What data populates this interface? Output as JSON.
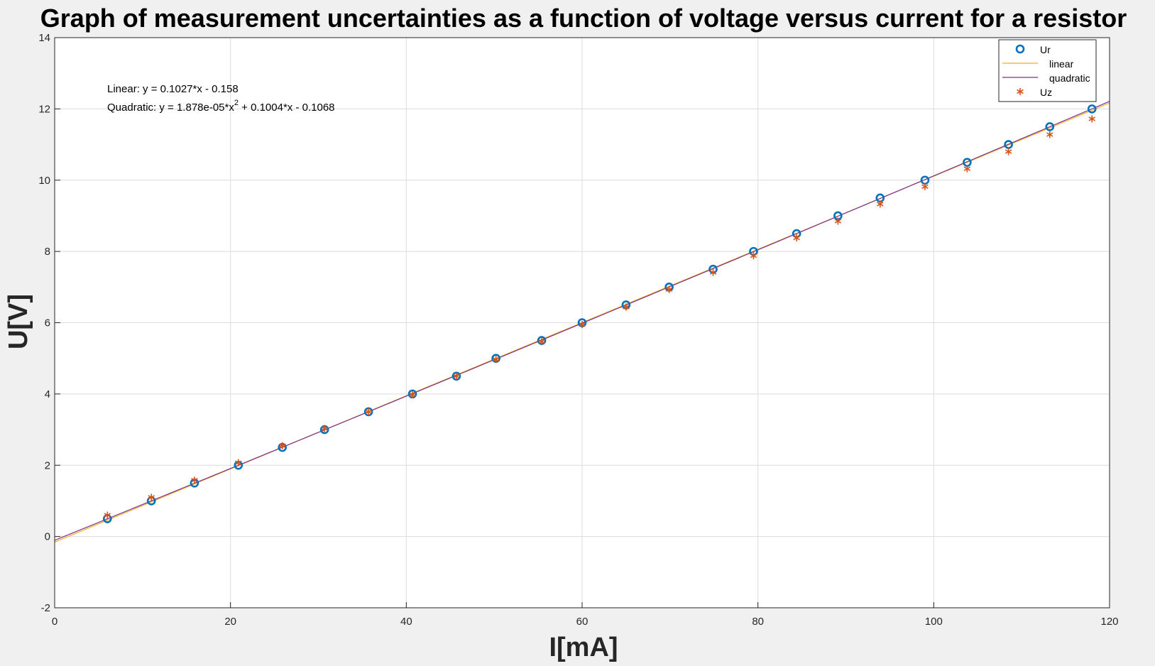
{
  "chart_data": {
    "type": "scatter",
    "title": "Graph of measurement uncertainties as a function of voltage versus current for a resistor",
    "xlabel": "I[mA]",
    "ylabel": "U[V]",
    "xlim": [
      0,
      120
    ],
    "ylim": [
      -2,
      14
    ],
    "xticks": [
      0,
      20,
      40,
      60,
      80,
      100,
      120
    ],
    "yticks": [
      -2,
      0,
      2,
      4,
      6,
      8,
      10,
      12,
      14
    ],
    "grid": true,
    "legend_position": "top-right",
    "annotations": {
      "linear": "Linear:  y = 0.1027*x - 0.158",
      "quadratic_prefix": "Quadratic:  y = 1.878e-05*x",
      "quadratic_exponent": "2",
      "quadratic_suffix": " + 0.1004*x - 0.1068"
    },
    "series": [
      {
        "name": "Ur",
        "kind": "markers-circle",
        "color": "#0072bd",
        "x": [
          6.0,
          11.0,
          15.9,
          20.9,
          25.9,
          30.7,
          35.7,
          40.7,
          45.7,
          50.2,
          55.4,
          60.0,
          65.0,
          69.9,
          74.9,
          79.5,
          84.4,
          89.1,
          93.9,
          99.0,
          103.8,
          108.5,
          113.2,
          118.0
        ],
        "y": [
          0.5,
          1.0,
          1.5,
          2.0,
          2.5,
          3.0,
          3.5,
          4.0,
          4.5,
          5.0,
          5.5,
          6.0,
          6.5,
          7.0,
          7.5,
          8.0,
          8.5,
          9.0,
          9.5,
          10.0,
          10.5,
          11.0,
          11.5,
          12.0
        ]
      },
      {
        "name": "linear",
        "kind": "line",
        "color": "#edb120",
        "coefficients": [
          0.1027,
          -0.158
        ]
      },
      {
        "name": "quadratic",
        "kind": "line",
        "color": "#7e2f8e",
        "coefficients": [
          1.878e-05,
          0.1004,
          -0.1068
        ]
      },
      {
        "name": "Uz",
        "kind": "markers-star",
        "color": "#d95319",
        "x": [
          6.0,
          11.0,
          15.9,
          20.9,
          25.9,
          30.7,
          35.7,
          40.7,
          45.7,
          50.2,
          55.4,
          60.0,
          65.0,
          69.9,
          74.9,
          79.5,
          84.4,
          89.1,
          93.9,
          99.0,
          103.8,
          108.5,
          113.2,
          118.0
        ],
        "y": [
          0.6,
          1.1,
          1.58,
          2.07,
          2.55,
          3.03,
          3.5,
          3.98,
          4.5,
          4.97,
          5.47,
          5.95,
          6.44,
          6.93,
          7.41,
          7.88,
          8.38,
          8.85,
          9.33,
          9.82,
          10.32,
          10.8,
          11.28,
          11.72
        ]
      }
    ]
  }
}
